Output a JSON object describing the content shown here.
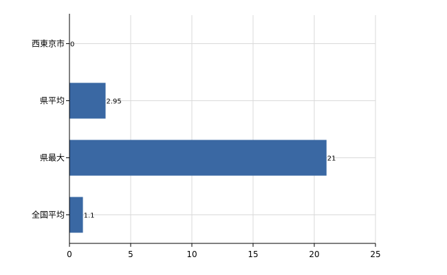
{
  "chart_data": {
    "type": "bar",
    "orientation": "horizontal",
    "title": "",
    "xlabel": "",
    "ylabel": "",
    "categories": [
      "西東京市",
      "県平均",
      "県最大",
      "全国平均"
    ],
    "values": [
      0,
      2.95,
      21,
      1.1
    ],
    "value_labels": [
      "0",
      "2.95",
      "21",
      "1.1"
    ],
    "xlim": [
      0,
      25
    ],
    "xticks": [
      0,
      5,
      10,
      15,
      20,
      25
    ],
    "grid": true,
    "legend": "none",
    "colors": {
      "bar": "#3a68a3",
      "grid": "#d9d9d9",
      "axis": "#000000"
    }
  }
}
